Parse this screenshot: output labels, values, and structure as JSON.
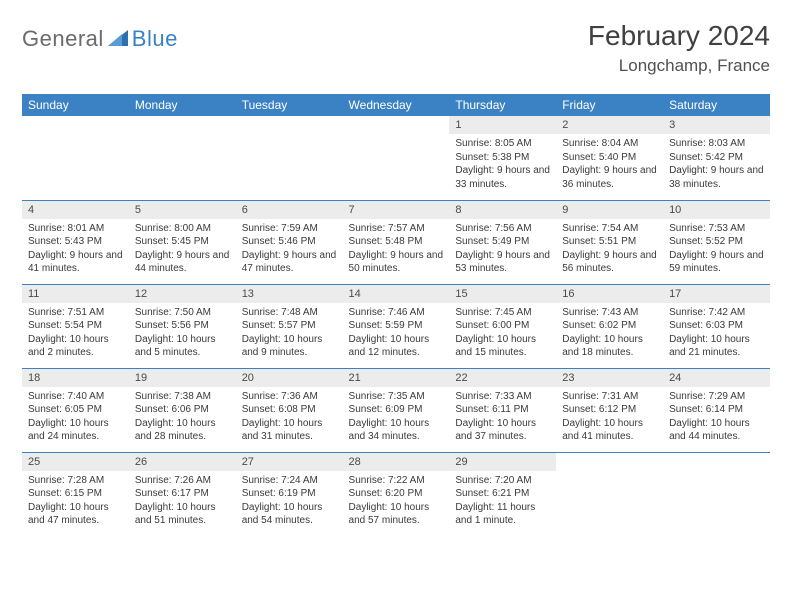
{
  "logo": {
    "part1": "General",
    "part2": "Blue"
  },
  "title": "February 2024",
  "location": "Longchamp, France",
  "colors": {
    "header_bg": "#3b82c4",
    "header_text": "#ffffff",
    "daynum_bg": "#ececec",
    "text": "#3a3a3a",
    "rule": "#3b82c4"
  },
  "weekdays": [
    "Sunday",
    "Monday",
    "Tuesday",
    "Wednesday",
    "Thursday",
    "Friday",
    "Saturday"
  ],
  "first_weekday_index": 4,
  "days": [
    {
      "n": "1",
      "sunrise": "8:05 AM",
      "sunset": "5:38 PM",
      "daylight": "9 hours and 33 minutes."
    },
    {
      "n": "2",
      "sunrise": "8:04 AM",
      "sunset": "5:40 PM",
      "daylight": "9 hours and 36 minutes."
    },
    {
      "n": "3",
      "sunrise": "8:03 AM",
      "sunset": "5:42 PM",
      "daylight": "9 hours and 38 minutes."
    },
    {
      "n": "4",
      "sunrise": "8:01 AM",
      "sunset": "5:43 PM",
      "daylight": "9 hours and 41 minutes."
    },
    {
      "n": "5",
      "sunrise": "8:00 AM",
      "sunset": "5:45 PM",
      "daylight": "9 hours and 44 minutes."
    },
    {
      "n": "6",
      "sunrise": "7:59 AM",
      "sunset": "5:46 PM",
      "daylight": "9 hours and 47 minutes."
    },
    {
      "n": "7",
      "sunrise": "7:57 AM",
      "sunset": "5:48 PM",
      "daylight": "9 hours and 50 minutes."
    },
    {
      "n": "8",
      "sunrise": "7:56 AM",
      "sunset": "5:49 PM",
      "daylight": "9 hours and 53 minutes."
    },
    {
      "n": "9",
      "sunrise": "7:54 AM",
      "sunset": "5:51 PM",
      "daylight": "9 hours and 56 minutes."
    },
    {
      "n": "10",
      "sunrise": "7:53 AM",
      "sunset": "5:52 PM",
      "daylight": "9 hours and 59 minutes."
    },
    {
      "n": "11",
      "sunrise": "7:51 AM",
      "sunset": "5:54 PM",
      "daylight": "10 hours and 2 minutes."
    },
    {
      "n": "12",
      "sunrise": "7:50 AM",
      "sunset": "5:56 PM",
      "daylight": "10 hours and 5 minutes."
    },
    {
      "n": "13",
      "sunrise": "7:48 AM",
      "sunset": "5:57 PM",
      "daylight": "10 hours and 9 minutes."
    },
    {
      "n": "14",
      "sunrise": "7:46 AM",
      "sunset": "5:59 PM",
      "daylight": "10 hours and 12 minutes."
    },
    {
      "n": "15",
      "sunrise": "7:45 AM",
      "sunset": "6:00 PM",
      "daylight": "10 hours and 15 minutes."
    },
    {
      "n": "16",
      "sunrise": "7:43 AM",
      "sunset": "6:02 PM",
      "daylight": "10 hours and 18 minutes."
    },
    {
      "n": "17",
      "sunrise": "7:42 AM",
      "sunset": "6:03 PM",
      "daylight": "10 hours and 21 minutes."
    },
    {
      "n": "18",
      "sunrise": "7:40 AM",
      "sunset": "6:05 PM",
      "daylight": "10 hours and 24 minutes."
    },
    {
      "n": "19",
      "sunrise": "7:38 AM",
      "sunset": "6:06 PM",
      "daylight": "10 hours and 28 minutes."
    },
    {
      "n": "20",
      "sunrise": "7:36 AM",
      "sunset": "6:08 PM",
      "daylight": "10 hours and 31 minutes."
    },
    {
      "n": "21",
      "sunrise": "7:35 AM",
      "sunset": "6:09 PM",
      "daylight": "10 hours and 34 minutes."
    },
    {
      "n": "22",
      "sunrise": "7:33 AM",
      "sunset": "6:11 PM",
      "daylight": "10 hours and 37 minutes."
    },
    {
      "n": "23",
      "sunrise": "7:31 AM",
      "sunset": "6:12 PM",
      "daylight": "10 hours and 41 minutes."
    },
    {
      "n": "24",
      "sunrise": "7:29 AM",
      "sunset": "6:14 PM",
      "daylight": "10 hours and 44 minutes."
    },
    {
      "n": "25",
      "sunrise": "7:28 AM",
      "sunset": "6:15 PM",
      "daylight": "10 hours and 47 minutes."
    },
    {
      "n": "26",
      "sunrise": "7:26 AM",
      "sunset": "6:17 PM",
      "daylight": "10 hours and 51 minutes."
    },
    {
      "n": "27",
      "sunrise": "7:24 AM",
      "sunset": "6:19 PM",
      "daylight": "10 hours and 54 minutes."
    },
    {
      "n": "28",
      "sunrise": "7:22 AM",
      "sunset": "6:20 PM",
      "daylight": "10 hours and 57 minutes."
    },
    {
      "n": "29",
      "sunrise": "7:20 AM",
      "sunset": "6:21 PM",
      "daylight": "11 hours and 1 minute."
    }
  ],
  "labels": {
    "sunrise": "Sunrise:",
    "sunset": "Sunset:",
    "daylight": "Daylight:"
  }
}
